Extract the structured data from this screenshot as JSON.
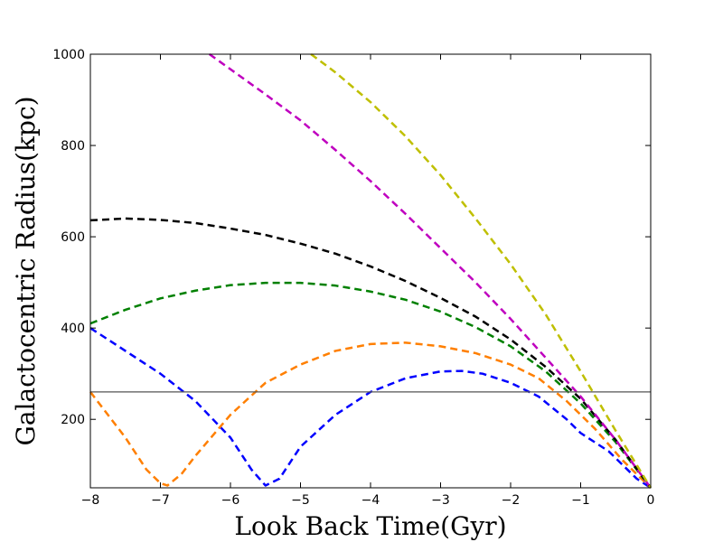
{
  "chart_data": {
    "type": "line",
    "title": "",
    "xlabel": "Look Back Time(Gyr)",
    "ylabel": "Galactocentric Radius(kpc)",
    "xlim": [
      -8,
      0
    ],
    "ylim": [
      50,
      1000
    ],
    "xticks": [
      -8,
      -7,
      -6,
      -5,
      -4,
      -3,
      -2,
      -1,
      0
    ],
    "yticks": [
      200,
      400,
      600,
      800,
      1000
    ],
    "xtick_labels": [
      "−8",
      "−7",
      "−6",
      "−5",
      "−4",
      "−3",
      "−2",
      "−1",
      "0"
    ],
    "ytick_labels": [
      "200",
      "400",
      "600",
      "800",
      "1000"
    ],
    "grid": false,
    "legend": "none",
    "reference_line": {
      "y": 260,
      "color": "#555555"
    },
    "series": [
      {
        "color": "#0000ff",
        "style": "dashed",
        "x": [
          -8.0,
          -7.5,
          -7.0,
          -6.5,
          -6.0,
          -5.7,
          -5.5,
          -5.3,
          -5.0,
          -4.5,
          -4.0,
          -3.5,
          -3.0,
          -2.7,
          -2.4,
          -2.0,
          -1.6,
          -1.2,
          -1.0,
          -0.6,
          -0.2,
          0.0
        ],
        "y": [
          400,
          350,
          300,
          240,
          160,
          90,
          55,
          70,
          140,
          210,
          260,
          290,
          305,
          306,
          300,
          280,
          250,
          200,
          170,
          130,
          70,
          50
        ]
      },
      {
        "color": "#ff7f00",
        "style": "dashed",
        "x": [
          -8.0,
          -7.5,
          -7.2,
          -7.0,
          -6.9,
          -6.7,
          -6.5,
          -6.0,
          -5.5,
          -5.0,
          -4.5,
          -4.0,
          -3.5,
          -3.0,
          -2.5,
          -2.0,
          -1.6,
          -1.2,
          -0.8,
          -0.4,
          0.0
        ],
        "y": [
          260,
          160,
          90,
          60,
          55,
          80,
          120,
          210,
          280,
          320,
          350,
          365,
          368,
          360,
          345,
          320,
          290,
          240,
          180,
          110,
          50
        ]
      },
      {
        "color": "#008000",
        "style": "dashed",
        "x": [
          -8.0,
          -7.5,
          -7.0,
          -6.5,
          -6.0,
          -5.5,
          -5.0,
          -4.5,
          -4.0,
          -3.5,
          -3.0,
          -2.5,
          -2.0,
          -1.5,
          -1.0,
          -0.5,
          0.0
        ],
        "y": [
          410,
          440,
          465,
          482,
          494,
          499,
          499,
          493,
          480,
          462,
          436,
          402,
          360,
          305,
          235,
          150,
          50
        ]
      },
      {
        "color": "#000000",
        "style": "dashed",
        "x": [
          -8.0,
          -7.5,
          -7.0,
          -6.5,
          -6.0,
          -5.5,
          -5.0,
          -4.5,
          -4.0,
          -3.5,
          -3.0,
          -2.5,
          -2.0,
          -1.5,
          -1.0,
          -0.5,
          0.0
        ],
        "y": [
          636,
          640,
          637,
          630,
          618,
          604,
          585,
          563,
          535,
          503,
          466,
          425,
          375,
          315,
          245,
          155,
          50
        ]
      },
      {
        "color": "#bf00bf",
        "style": "dashed",
        "x": [
          -6.3,
          -6.0,
          -5.5,
          -5.0,
          -4.5,
          -4.0,
          -3.5,
          -3.0,
          -2.5,
          -2.0,
          -1.5,
          -1.0,
          -0.5,
          0.0
        ],
        "y": [
          1000,
          967,
          912,
          855,
          790,
          722,
          650,
          575,
          500,
          420,
          335,
          250,
          155,
          50
        ]
      },
      {
        "color": "#bfbf00",
        "style": "dashed",
        "x": [
          -4.85,
          -4.5,
          -4.0,
          -3.5,
          -3.0,
          -2.5,
          -2.0,
          -1.5,
          -1.0,
          -0.5,
          0.0
        ],
        "y": [
          1000,
          960,
          895,
          820,
          735,
          640,
          540,
          430,
          305,
          175,
          50
        ]
      }
    ]
  }
}
